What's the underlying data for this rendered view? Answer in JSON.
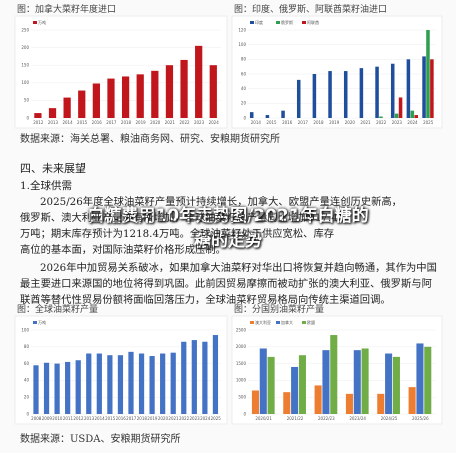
{
  "overlay_title": [
    "白糖费用10年走势图/2021年白糖的",
    "糖的走势"
  ],
  "sections": {
    "heading": "四、未来展望",
    "subheading": "1.全球供需"
  },
  "sources": [
    "数据来源：海关总署、粮油商务网、研究、安粮期货研究所",
    "数据来源：USDA、安粮期货研究所"
  ],
  "paragraphs": [
    [
      "2025/26年度全球油菜籽产量预计持续增长，加拿大、欧盟产量连创历史新高，",
      "俄罗斯、澳大利亚产量亦有所增加，全球油菜籽总产量同比增加917.4",
      "万吨；期末库存预计为1218.4万吨。全球油菜籽处于供应宽松、库存",
      "高位的基本面，对国际油菜籽价格形成压制。"
    ],
    [
      "2026年中加贸易关系破冰，如果加拿大油菜籽对华出口将恢复并趋向畅通，其作为中国",
      "最主要进口来源国的地位将得到巩固。此前因贸易摩擦而被动扩张的澳大利亚、俄罗斯与阿",
      "联酋等替代性贸易份额将面临回落压力，全球油菜籽贸易格局向传统主渠道回调。"
    ]
  ],
  "figures": [
    {
      "type": "bar",
      "title": "图：加拿大菜籽年度进口",
      "categories": [
        "2012",
        "2013",
        "2014",
        "2015",
        "2016",
        "2017",
        "2018",
        "2019",
        "2020",
        "2021",
        "2022",
        "2023",
        "2024"
      ],
      "ylim": [
        0,
        250
      ],
      "yticks": [
        0,
        50,
        100,
        150,
        200,
        250
      ],
      "series": [
        {
          "name": "万吨",
          "color": "#c0161c",
          "values": [
            14,
            28,
            58,
            78,
            98,
            112,
            118,
            124,
            134,
            150,
            165,
            205,
            150
          ]
        }
      ]
    },
    {
      "type": "bar",
      "title": "图：印度、俄罗斯、阿联酋菜籽油进口",
      "categories": [
        "2014",
        "2015",
        "2016",
        "2017",
        "2018",
        "2019",
        "2020",
        "2021",
        "2022",
        "2023",
        "2024",
        "2025"
      ],
      "ylim": [
        0,
        120
      ],
      "yticks": [
        0,
        20,
        40,
        60,
        80,
        100,
        120
      ],
      "series": [
        {
          "name": "印度",
          "color": "#1f4e9c",
          "values": [
            8,
            4,
            10,
            52,
            60,
            64,
            64,
            68,
            70,
            74,
            80,
            84
          ]
        },
        {
          "name": "俄罗斯",
          "color": "#2e9e4f",
          "values": [
            0,
            0,
            0,
            0,
            0,
            0,
            0,
            0,
            2,
            6,
            10,
            120
          ]
        },
        {
          "name": "阿联酋",
          "color": "#c0161c",
          "values": [
            0,
            0,
            0,
            0,
            0,
            0,
            0,
            0,
            0,
            28,
            4,
            80
          ]
        }
      ]
    },
    {
      "type": "bar",
      "title": "图：全球油菜籽产量",
      "categories": [
        "2008",
        "2009",
        "2010",
        "2011",
        "2012",
        "2013",
        "2014",
        "2015",
        "2016",
        "2017",
        "2018",
        "2019",
        "2020",
        "2021",
        "2022",
        "2023",
        "2024",
        "2025"
      ],
      "ylim": [
        0,
        100
      ],
      "yticks": [
        0,
        20,
        40,
        60,
        80,
        100
      ],
      "series": [
        {
          "name": "万吨",
          "color": "#4472c4",
          "values": [
            58,
            61,
            60,
            62,
            64,
            72,
            72,
            70,
            70,
            74,
            72,
            69,
            72,
            73,
            86,
            88,
            86,
            94
          ]
        }
      ]
    },
    {
      "type": "bar",
      "title": "图：分国别油菜籽产量",
      "categories": [
        "2020/21",
        "2021/22",
        "2022/23",
        "2023/24",
        "2024/25",
        "2025/26"
      ],
      "ylim": [
        0,
        2500
      ],
      "yticks": [
        0,
        500,
        1000,
        1500,
        2000,
        2500
      ],
      "series": [
        {
          "name": "澳大利亚",
          "color": "#ed7d31",
          "values": [
            700,
            650,
            850,
            600,
            600,
            800
          ]
        },
        {
          "name": "加拿大",
          "color": "#4472c4",
          "values": [
            1950,
            1400,
            1900,
            1900,
            1800,
            2100
          ]
        },
        {
          "name": "欧盟",
          "color": "#70ad47",
          "values": [
            1700,
            1750,
            2350,
            1950,
            1700,
            2000
          ]
        }
      ]
    }
  ]
}
